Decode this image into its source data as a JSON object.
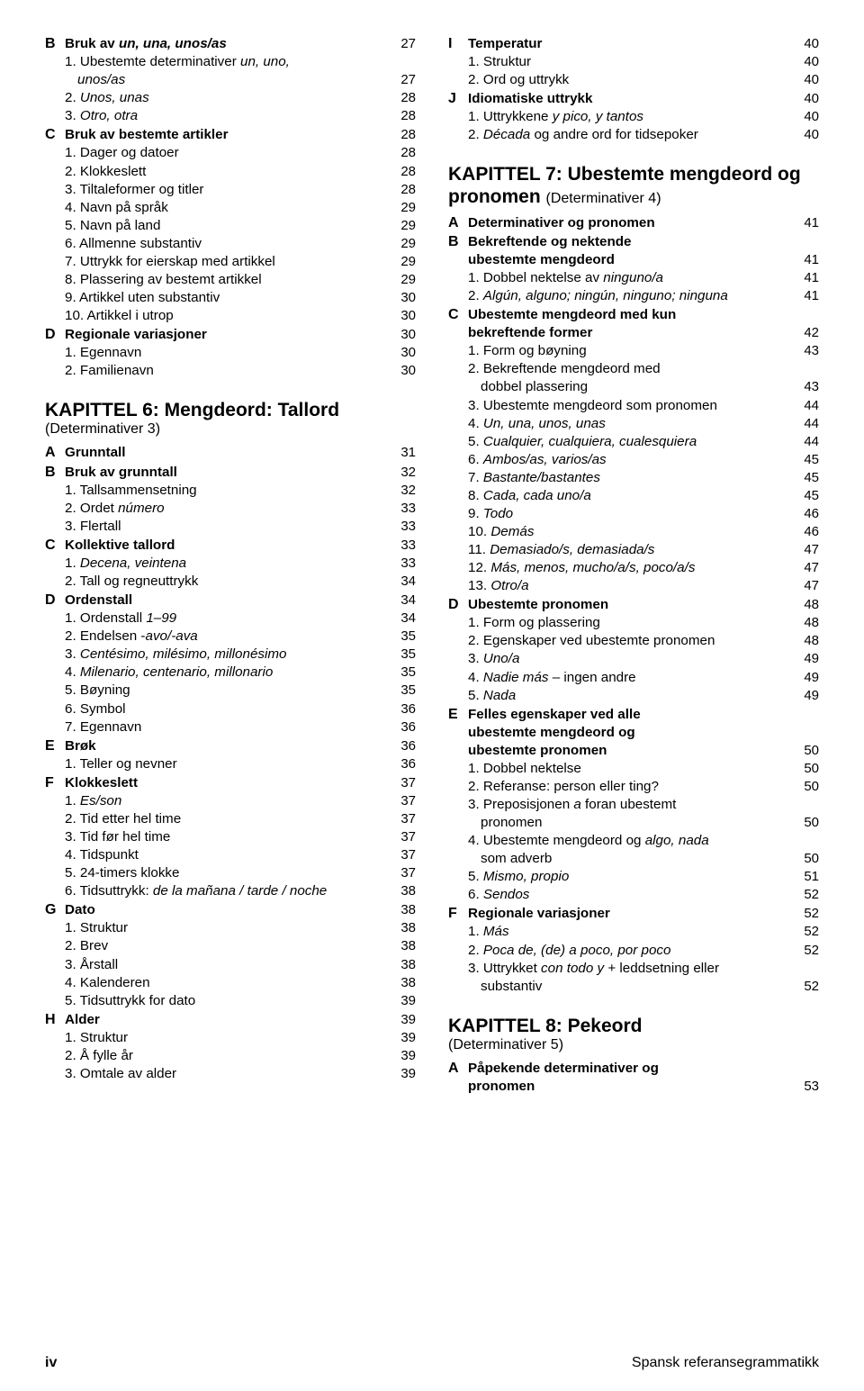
{
  "footer": {
    "page": "iv",
    "book": "Spansk referansegrammatikk"
  },
  "left": [
    {
      "t": "row",
      "letter": "B",
      "bold": true,
      "text": "Bruk av <i>un, una, unos/as</i>",
      "page": "27"
    },
    {
      "t": "row",
      "indent": 1,
      "text": "1. Ubestemte determinativer <i>un, uno,</i>"
    },
    {
      "t": "row",
      "indent": 2,
      "text": "<i>unos/as</i>",
      "page": "27"
    },
    {
      "t": "row",
      "indent": 1,
      "text": "2. <i>Unos, unas</i>",
      "page": "28"
    },
    {
      "t": "row",
      "indent": 1,
      "text": "3. <i>Otro, otra</i>",
      "page": "28"
    },
    {
      "t": "row",
      "letter": "C",
      "bold": true,
      "text": "Bruk av bestemte artikler",
      "page": "28"
    },
    {
      "t": "row",
      "indent": 1,
      "text": "1. Dager og datoer",
      "page": "28"
    },
    {
      "t": "row",
      "indent": 1,
      "text": "2. Klokkeslett",
      "page": "28"
    },
    {
      "t": "row",
      "indent": 1,
      "text": "3. Tiltaleformer og titler",
      "page": "28"
    },
    {
      "t": "row",
      "indent": 1,
      "text": "4. Navn på språk",
      "page": "29"
    },
    {
      "t": "row",
      "indent": 1,
      "text": "5. Navn på land",
      "page": "29"
    },
    {
      "t": "row",
      "indent": 1,
      "text": "6. Allmenne substantiv",
      "page": "29"
    },
    {
      "t": "row",
      "indent": 1,
      "text": "7. Uttrykk for eierskap med artikkel",
      "page": "29"
    },
    {
      "t": "row",
      "indent": 1,
      "text": "8. Plassering av bestemt artikkel",
      "page": "29"
    },
    {
      "t": "row",
      "indent": 1,
      "text": "9. Artikkel uten substantiv",
      "page": "30"
    },
    {
      "t": "row",
      "indent": 1,
      "text": "10. Artikkel i utrop",
      "page": "30"
    },
    {
      "t": "row",
      "letter": "D",
      "bold": true,
      "text": "Regionale variasjoner",
      "page": "30"
    },
    {
      "t": "row",
      "indent": 1,
      "text": "1. Egennavn",
      "page": "30"
    },
    {
      "t": "row",
      "indent": 1,
      "text": "2. Familienavn",
      "page": "30"
    },
    {
      "t": "chapter",
      "title": "KAPITTEL 6: Mengdeord: Tallord",
      "sub": "(Determinativer 3)"
    },
    {
      "t": "row",
      "letter": "A",
      "bold": true,
      "text": "Grunntall",
      "page": "31"
    },
    {
      "t": "row",
      "letter": "B",
      "bold": true,
      "text": "Bruk av grunntall",
      "page": "32"
    },
    {
      "t": "row",
      "indent": 1,
      "text": "1. Tallsammensetning",
      "page": "32"
    },
    {
      "t": "row",
      "indent": 1,
      "text": "2. Ordet <i>número</i>",
      "page": "33"
    },
    {
      "t": "row",
      "indent": 1,
      "text": "3. Flertall",
      "page": "33"
    },
    {
      "t": "row",
      "letter": "C",
      "bold": true,
      "text": "Kollektive tallord",
      "page": "33"
    },
    {
      "t": "row",
      "indent": 1,
      "text": "1. <i>Decena, veintena</i>",
      "page": "33"
    },
    {
      "t": "row",
      "indent": 1,
      "text": "2. Tall og regneuttrykk",
      "page": "34"
    },
    {
      "t": "row",
      "letter": "D",
      "bold": true,
      "text": "Ordenstall",
      "page": "34"
    },
    {
      "t": "row",
      "indent": 1,
      "text": "1. Ordenstall <i>1–99</i>",
      "page": "34"
    },
    {
      "t": "row",
      "indent": 1,
      "text": "2. Endelsen -<i>avo/-ava</i>",
      "page": "35"
    },
    {
      "t": "row",
      "indent": 1,
      "text": "3. <i>Centésimo, milésimo, millonésimo</i>",
      "page": "35"
    },
    {
      "t": "row",
      "indent": 1,
      "text": "4. <i>Milenario, centenario, millonario</i>",
      "page": "35"
    },
    {
      "t": "row",
      "indent": 1,
      "text": "5. Bøyning",
      "page": "35"
    },
    {
      "t": "row",
      "indent": 1,
      "text": "6. Symbol",
      "page": "36"
    },
    {
      "t": "row",
      "indent": 1,
      "text": "7. Egennavn",
      "page": "36"
    },
    {
      "t": "row",
      "letter": "E",
      "bold": true,
      "text": "Brøk",
      "page": "36"
    },
    {
      "t": "row",
      "indent": 1,
      "text": "1. Teller og nevner",
      "page": "36"
    },
    {
      "t": "row",
      "letter": "F",
      "bold": true,
      "text": "Klokkeslett",
      "page": "37"
    },
    {
      "t": "row",
      "indent": 1,
      "text": "1. <i>Es/son</i>",
      "page": "37"
    },
    {
      "t": "row",
      "indent": 1,
      "text": "2. Tid etter hel time",
      "page": "37"
    },
    {
      "t": "row",
      "indent": 1,
      "text": "3. Tid før hel time",
      "page": "37"
    },
    {
      "t": "row",
      "indent": 1,
      "text": "4. Tidspunkt",
      "page": "37"
    },
    {
      "t": "row",
      "indent": 1,
      "text": "5. 24-timers klokke",
      "page": "37"
    },
    {
      "t": "row",
      "indent": 1,
      "text": "6. Tidsuttrykk: <i>de la mañana / tarde / noche</i>",
      "page": "38"
    },
    {
      "t": "row",
      "letter": "G",
      "bold": true,
      "text": "Dato",
      "page": "38"
    },
    {
      "t": "row",
      "indent": 1,
      "text": "1. Struktur",
      "page": "38"
    },
    {
      "t": "row",
      "indent": 1,
      "text": "2. Brev",
      "page": "38"
    },
    {
      "t": "row",
      "indent": 1,
      "text": "3. Årstall",
      "page": "38"
    },
    {
      "t": "row",
      "indent": 1,
      "text": "4. Kalenderen",
      "page": "38"
    },
    {
      "t": "row",
      "indent": 1,
      "text": "5. Tidsuttrykk for dato",
      "page": "39"
    },
    {
      "t": "row",
      "letter": "H",
      "bold": true,
      "text": "Alder",
      "page": "39"
    },
    {
      "t": "row",
      "indent": 1,
      "text": "1. Struktur",
      "page": "39"
    },
    {
      "t": "row",
      "indent": 1,
      "text": "2. Å fylle år",
      "page": "39"
    },
    {
      "t": "row",
      "indent": 1,
      "text": "3. Omtale av alder",
      "page": "39"
    }
  ],
  "right": [
    {
      "t": "row",
      "letter": "I",
      "bold": true,
      "text": "Temperatur",
      "page": "40"
    },
    {
      "t": "row",
      "indent": 1,
      "text": "1. Struktur",
      "page": "40"
    },
    {
      "t": "row",
      "indent": 1,
      "text": "2. Ord og uttrykk",
      "page": "40"
    },
    {
      "t": "row",
      "letter": "J",
      "bold": true,
      "text": "Idiomatiske uttrykk",
      "page": "40"
    },
    {
      "t": "row",
      "indent": 1,
      "text": "1. Uttrykkene  <i>y pico, y tantos</i>",
      "page": "40"
    },
    {
      "t": "row",
      "indent": 1,
      "text": "2. <i>Década</i> og andre ord for tidsepoker",
      "page": "40"
    },
    {
      "t": "chapter",
      "title": "KAPITTEL 7: Ubestemte mengdeord og pronomen",
      "sub": "(Determinativer 4)",
      "inline": true
    },
    {
      "t": "row",
      "letter": "A",
      "bold": true,
      "text": "Determinativer og pronomen",
      "page": "41"
    },
    {
      "t": "row",
      "letter": "B",
      "bold": true,
      "text": "Bekreftende og nektende"
    },
    {
      "t": "row",
      "indent": 1,
      "bold": true,
      "text": "ubestemte mengdeord",
      "page": "41"
    },
    {
      "t": "row",
      "indent": 1,
      "text": "1. Dobbel nektelse av <i>ninguno/a</i>",
      "page": "41"
    },
    {
      "t": "row",
      "indent": 1,
      "text": "2. <i>Algún, alguno; ningún, ninguno; ninguna</i>",
      "page": "41"
    },
    {
      "t": "row",
      "letter": "C",
      "bold": true,
      "text": "Ubestemte mengdeord med kun"
    },
    {
      "t": "row",
      "indent": 1,
      "bold": true,
      "text": "bekreftende former",
      "page": "42"
    },
    {
      "t": "row",
      "indent": 1,
      "text": "1. Form og bøyning",
      "page": "43"
    },
    {
      "t": "row",
      "indent": 1,
      "text": "2. Bekreftende mengdeord med"
    },
    {
      "t": "row",
      "indent": 2,
      "text": "dobbel plassering",
      "page": "43"
    },
    {
      "t": "row",
      "indent": 1,
      "text": "3. Ubestemte mengdeord som pronomen",
      "page": "44"
    },
    {
      "t": "row",
      "indent": 1,
      "text": "4. <i>Un, una, unos, unas</i>",
      "page": "44"
    },
    {
      "t": "row",
      "indent": 1,
      "text": "5. <i>Cualquier, cualquiera, cualesquiera</i>",
      "page": "44"
    },
    {
      "t": "row",
      "indent": 1,
      "text": "6. <i>Ambos/as, varios/as</i>",
      "page": "45"
    },
    {
      "t": "row",
      "indent": 1,
      "text": "7. <i>Bastante/bastantes</i>",
      "page": "45"
    },
    {
      "t": "row",
      "indent": 1,
      "text": "8. <i>Cada, cada uno/a</i>",
      "page": "45"
    },
    {
      "t": "row",
      "indent": 1,
      "text": "9. <i>Todo</i>",
      "page": "46"
    },
    {
      "t": "row",
      "indent": 1,
      "text": "10. <i>Demás</i>",
      "page": "46"
    },
    {
      "t": "row",
      "indent": 1,
      "text": "11. <i>Demasiado/s, demasiada/s</i>",
      "page": "47"
    },
    {
      "t": "row",
      "indent": 1,
      "text": "12. <i>Más, menos, mucho/a/s, poco/a/s</i>",
      "page": "47"
    },
    {
      "t": "row",
      "indent": 1,
      "text": "13. <i>Otro/a</i>",
      "page": "47"
    },
    {
      "t": "row",
      "letter": "D",
      "bold": true,
      "text": "Ubestemte pronomen",
      "page": "48"
    },
    {
      "t": "row",
      "indent": 1,
      "text": "1. Form og plassering",
      "page": "48"
    },
    {
      "t": "row",
      "indent": 1,
      "text": "2. Egenskaper ved ubestemte pronomen",
      "page": "48"
    },
    {
      "t": "row",
      "indent": 1,
      "text": "3. <i>Uno/a</i>",
      "page": "49"
    },
    {
      "t": "row",
      "indent": 1,
      "text": "4. <i>Nadie más</i> – ingen andre",
      "page": "49"
    },
    {
      "t": "row",
      "indent": 1,
      "text": "5. <i>Nada</i>",
      "page": "49"
    },
    {
      "t": "row",
      "letter": "E",
      "bold": true,
      "text": "Felles egenskaper ved alle"
    },
    {
      "t": "row",
      "indent": 1,
      "bold": true,
      "text": "ubestemte mengdeord og"
    },
    {
      "t": "row",
      "indent": 1,
      "bold": true,
      "text": "ubestemte pronomen",
      "page": "50"
    },
    {
      "t": "row",
      "indent": 1,
      "text": "1. Dobbel nektelse",
      "page": "50"
    },
    {
      "t": "row",
      "indent": 1,
      "text": "2. Referanse: person eller ting?",
      "page": "50"
    },
    {
      "t": "row",
      "indent": 1,
      "text": "3. Preposisjonen <i>a</i> foran ubestemt"
    },
    {
      "t": "row",
      "indent": 2,
      "text": "pronomen",
      "page": "50"
    },
    {
      "t": "row",
      "indent": 1,
      "text": "4. Ubestemte mengdeord og <i>algo, nada</i>"
    },
    {
      "t": "row",
      "indent": 2,
      "text": "som adverb",
      "page": "50"
    },
    {
      "t": "row",
      "indent": 1,
      "text": "5. <i>Mismo, propio</i>",
      "page": "51"
    },
    {
      "t": "row",
      "indent": 1,
      "text": "6. <i>Sendos</i>",
      "page": "52"
    },
    {
      "t": "row",
      "letter": "F",
      "bold": true,
      "text": "Regionale variasjoner",
      "page": "52"
    },
    {
      "t": "row",
      "indent": 1,
      "text": "1. <i>Más</i>",
      "page": "52"
    },
    {
      "t": "row",
      "indent": 1,
      "text": "2. <i>Poca de, (de) a poco, por poco</i>",
      "page": "52"
    },
    {
      "t": "row",
      "indent": 1,
      "text": "3. Uttrykket <i>con todo y</i> + leddsetning eller"
    },
    {
      "t": "row",
      "indent": 2,
      "text": "substantiv",
      "page": "52"
    },
    {
      "t": "chapter",
      "title": "KAPITTEL 8: Pekeord",
      "sub": "(Determinativer 5)"
    },
    {
      "t": "row",
      "letter": "A",
      "bold": true,
      "text": "Påpekende determinativer og"
    },
    {
      "t": "row",
      "indent": 1,
      "bold": true,
      "text": "pronomen",
      "page": "53"
    }
  ]
}
